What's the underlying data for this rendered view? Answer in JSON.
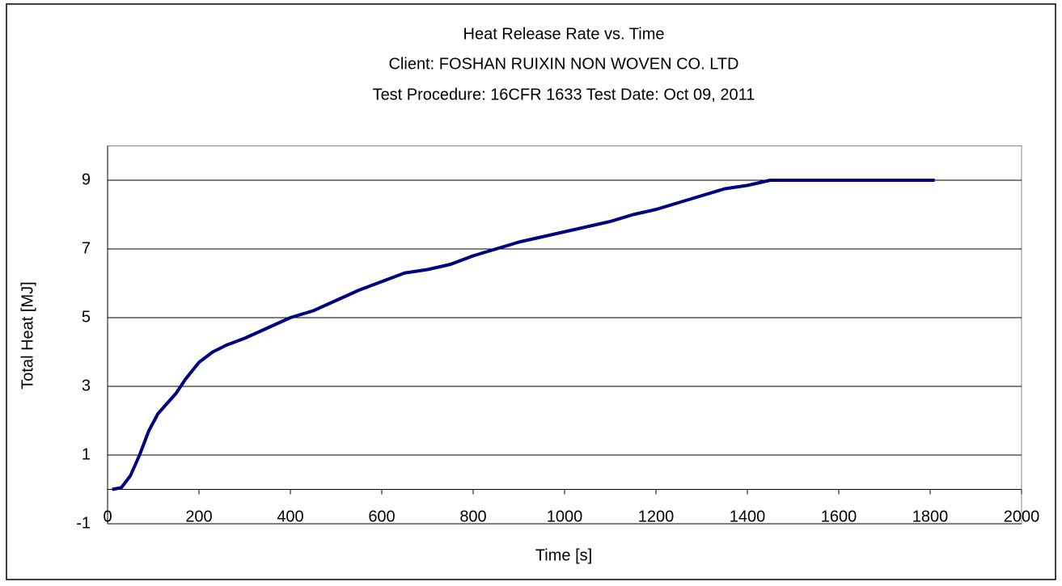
{
  "chart_data": {
    "type": "line",
    "title": "Heat Release Rate vs. Time",
    "subtitle": [
      "Client: FOSHAN RUIXIN NON WOVEN CO. LTD",
      "Test Procedure: 16CFR 1633 Test Date: Oct 09, 2011"
    ],
    "x_label": "Time [s]",
    "y_label": "Total Heat [MJ]",
    "x": [
      10,
      30,
      50,
      70,
      90,
      110,
      130,
      150,
      170,
      200,
      230,
      260,
      300,
      350,
      400,
      450,
      500,
      550,
      600,
      650,
      700,
      750,
      800,
      850,
      900,
      950,
      1000,
      1050,
      1100,
      1150,
      1200,
      1250,
      1300,
      1350,
      1400,
      1450,
      1500,
      1600,
      1700,
      1810
    ],
    "series": [
      {
        "name": "Total Heat",
        "color": "#000080",
        "values": [
          0,
          0.05,
          0.4,
          1.0,
          1.7,
          2.2,
          2.5,
          2.8,
          3.2,
          3.7,
          4.0,
          4.2,
          4.4,
          4.7,
          5.0,
          5.2,
          5.5,
          5.8,
          6.05,
          6.3,
          6.4,
          6.55,
          6.8,
          7.0,
          7.2,
          7.35,
          7.5,
          7.65,
          7.8,
          8.0,
          8.15,
          8.35,
          8.55,
          8.75,
          8.85,
          9.0,
          9.0,
          9.0,
          9.0,
          9.0
        ]
      }
    ],
    "xlim": [
      0,
      2000
    ],
    "xticks": [
      0,
      200,
      400,
      600,
      800,
      1000,
      1200,
      1400,
      1600,
      1800,
      2000
    ],
    "ylim": [
      -1,
      10
    ],
    "yticks": [
      -1,
      1,
      3,
      5,
      7,
      9
    ],
    "grid": true
  }
}
